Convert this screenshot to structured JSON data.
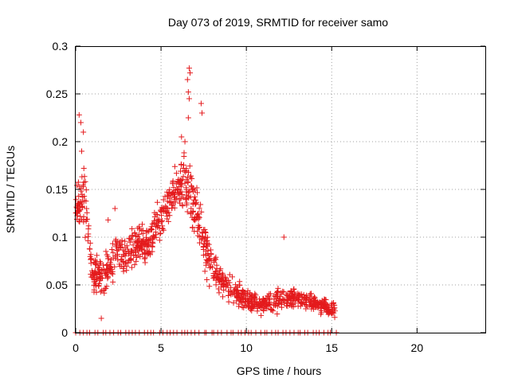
{
  "chart_data": {
    "type": "scatter",
    "title": "Day 073 of 2019, SRMTID for receiver samo",
    "xlabel": "GPS time / hours",
    "ylabel": "SRMTID / TECUs",
    "xlim": [
      0,
      24
    ],
    "ylim": [
      0,
      0.3
    ],
    "xticks": [
      0,
      5,
      10,
      15,
      20
    ],
    "xtick_labels": [
      "0",
      "5",
      "10",
      "15",
      "20"
    ],
    "yticks": [
      0,
      0.05,
      0.1,
      0.15,
      0.2,
      0.25,
      0.3
    ],
    "ytick_labels": [
      "0",
      "0.05",
      "0.1",
      "0.15",
      "0.2",
      "0.25",
      "0.3"
    ],
    "grid": true,
    "legend": "none",
    "marker": "plus",
    "series": [
      {
        "name": "SRMTID",
        "color": "#e41a1c",
        "profile": [
          [
            0.0,
            0.13,
            0.03
          ],
          [
            0.3,
            0.15,
            0.05
          ],
          [
            0.6,
            0.13,
            0.04
          ],
          [
            1.0,
            0.06,
            0.03
          ],
          [
            1.5,
            0.06,
            0.03
          ],
          [
            2.0,
            0.07,
            0.03
          ],
          [
            2.5,
            0.08,
            0.03
          ],
          [
            3.0,
            0.08,
            0.03
          ],
          [
            3.5,
            0.09,
            0.03
          ],
          [
            4.0,
            0.09,
            0.03
          ],
          [
            4.5,
            0.1,
            0.03
          ],
          [
            5.0,
            0.12,
            0.03
          ],
          [
            5.5,
            0.14,
            0.03
          ],
          [
            6.0,
            0.15,
            0.04
          ],
          [
            6.5,
            0.16,
            0.05
          ],
          [
            7.0,
            0.13,
            0.04
          ],
          [
            7.5,
            0.1,
            0.04
          ],
          [
            8.0,
            0.07,
            0.03
          ],
          [
            8.5,
            0.055,
            0.02
          ],
          [
            9.0,
            0.045,
            0.02
          ],
          [
            10.0,
            0.035,
            0.015
          ],
          [
            11.0,
            0.03,
            0.015
          ],
          [
            12.0,
            0.035,
            0.015
          ],
          [
            13.0,
            0.035,
            0.015
          ],
          [
            14.0,
            0.03,
            0.012
          ],
          [
            15.0,
            0.025,
            0.01
          ],
          [
            15.2,
            0.025,
            0.01
          ]
        ],
        "outliers": [
          [
            0.2,
            0.228
          ],
          [
            0.3,
            0.22
          ],
          [
            0.45,
            0.21
          ],
          [
            0.35,
            0.19
          ],
          [
            6.65,
            0.277
          ],
          [
            6.7,
            0.272
          ],
          [
            6.55,
            0.265
          ],
          [
            6.6,
            0.252
          ],
          [
            6.65,
            0.245
          ],
          [
            6.6,
            0.225
          ],
          [
            7.35,
            0.24
          ],
          [
            7.4,
            0.23
          ],
          [
            6.2,
            0.205
          ],
          [
            6.4,
            0.2
          ],
          [
            12.2,
            0.1
          ],
          [
            1.5,
            0.015
          ],
          [
            2.3,
            0.13
          ],
          [
            1.9,
            0.118
          ]
        ],
        "zero_points_x_range": [
          0.0,
          15.2
        ],
        "zero_points_count": 70
      }
    ]
  }
}
